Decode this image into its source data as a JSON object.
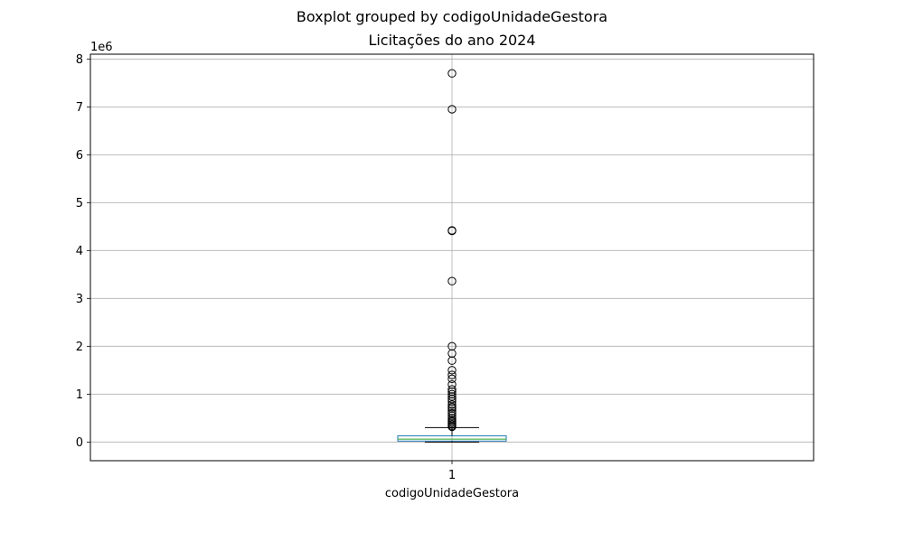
{
  "chart_data": {
    "type": "boxplot",
    "suptitle": "Boxplot grouped by codigoUnidadeGestora",
    "title": "Licitações do ano 2024",
    "xlabel": "codigoUnidadeGestora",
    "ylabel": "",
    "y_offset_label": "1e6",
    "categories": [
      "1"
    ],
    "yticks": [
      "0",
      "1",
      "2",
      "3",
      "4",
      "5",
      "6",
      "7",
      "8"
    ],
    "ylim": [
      -0.39,
      8.1
    ],
    "y_unit_scale": 1000000,
    "grid": true,
    "boxes": [
      {
        "category": "1",
        "whisker_low": 0,
        "q1": 20000,
        "median": 60000,
        "q3": 130000,
        "whisker_high": 300000,
        "outliers": [
          7700000,
          6950000,
          4420000,
          4410000,
          3360000,
          2000000,
          1850000,
          1700000,
          1500000,
          1400000,
          1320000,
          1200000,
          1100000,
          1050000,
          1000000,
          950000,
          900000,
          850000,
          780000,
          730000,
          700000,
          650000,
          600000,
          550000,
          500000,
          460000,
          430000,
          400000,
          370000,
          340000,
          320000
        ]
      }
    ],
    "colors": {
      "box": "#1f77b4",
      "median": "#2ca02c",
      "whisker": "#000000",
      "grid": "#b0b0b0"
    }
  }
}
